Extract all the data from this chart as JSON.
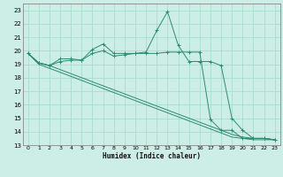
{
  "xlabel": "Humidex (Indice chaleur)",
  "x_values": [
    0,
    1,
    2,
    3,
    4,
    5,
    6,
    7,
    8,
    9,
    10,
    11,
    12,
    13,
    14,
    15,
    16,
    17,
    18,
    19,
    20,
    21,
    22,
    23
  ],
  "line1_y": [
    19.8,
    19.1,
    18.9,
    19.4,
    19.4,
    19.3,
    20.1,
    20.5,
    19.8,
    19.8,
    19.8,
    19.9,
    21.5,
    22.9,
    20.4,
    19.2,
    19.2,
    19.2,
    18.9,
    15.0,
    14.1,
    13.5,
    13.5,
    13.4
  ],
  "line2_y": [
    19.8,
    19.1,
    18.9,
    19.2,
    19.3,
    19.3,
    19.8,
    20.0,
    19.6,
    19.7,
    19.8,
    19.8,
    19.8,
    19.9,
    19.9,
    19.9,
    19.9,
    14.9,
    14.1,
    14.1,
    13.5,
    13.5,
    13.5,
    13.4
  ],
  "line3_y": [
    19.8,
    19.0,
    18.7,
    18.4,
    18.1,
    17.8,
    17.5,
    17.2,
    16.9,
    16.6,
    16.3,
    16.0,
    15.7,
    15.4,
    15.1,
    14.8,
    14.5,
    14.2,
    13.9,
    13.6,
    13.5,
    13.4,
    13.4,
    13.4
  ],
  "line4_y": [
    19.8,
    19.1,
    18.9,
    18.6,
    18.3,
    18.0,
    17.7,
    17.4,
    17.1,
    16.8,
    16.5,
    16.2,
    15.9,
    15.6,
    15.3,
    15.0,
    14.7,
    14.4,
    14.1,
    13.8,
    13.6,
    13.5,
    13.5,
    13.4
  ],
  "line_color": "#2d8b72",
  "bg_color": "#cceee6",
  "grid_color": "#aaddcc",
  "ylim": [
    13,
    23.5
  ],
  "xlim": [
    -0.5,
    23.5
  ],
  "yticks": [
    13,
    14,
    15,
    16,
    17,
    18,
    19,
    20,
    21,
    22,
    23
  ],
  "xticks": [
    0,
    1,
    2,
    3,
    4,
    5,
    6,
    7,
    8,
    9,
    10,
    11,
    12,
    13,
    14,
    15,
    16,
    17,
    18,
    19,
    20,
    21,
    22,
    23
  ]
}
